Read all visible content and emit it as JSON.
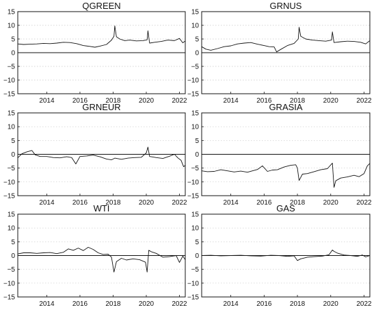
{
  "chart_data": [
    {
      "type": "line",
      "title": "QGREEN",
      "ylim": [
        -15,
        15
      ],
      "xlim": [
        2012.25,
        2022.35
      ],
      "yticks": [
        -15,
        -10,
        -5,
        0,
        5,
        10,
        15
      ],
      "xticks": [
        2014,
        2016,
        2018,
        2020,
        2022
      ],
      "grid": true,
      "series": [
        {
          "x": [
            2012.25,
            2012.6,
            2013.0,
            2013.4,
            2013.8,
            2014.2,
            2014.6,
            2015.0,
            2015.4,
            2015.8,
            2016.2,
            2016.6,
            2016.9,
            2017.2,
            2017.6,
            2017.9,
            2018.05,
            2018.1,
            2018.2,
            2018.4,
            2018.7,
            2019.0,
            2019.4,
            2019.8,
            2020.05,
            2020.1,
            2020.2,
            2020.5,
            2020.9,
            2021.3,
            2021.7,
            2022.0,
            2022.2,
            2022.35
          ],
          "y": [
            3.2,
            3.0,
            3.1,
            3.2,
            3.4,
            3.3,
            3.5,
            3.8,
            3.7,
            3.3,
            2.6,
            2.3,
            2.0,
            2.4,
            3.0,
            4.6,
            6.0,
            9.8,
            5.8,
            5.0,
            4.4,
            4.6,
            4.3,
            4.4,
            4.7,
            8.0,
            3.5,
            3.8,
            4.1,
            4.6,
            4.4,
            5.2,
            3.6,
            4.3
          ]
        }
      ]
    },
    {
      "type": "line",
      "title": "GRNUS",
      "ylim": [
        -15,
        15
      ],
      "xlim": [
        2012.25,
        2022.35
      ],
      "yticks": [
        -15,
        -10,
        -5,
        0,
        5,
        10,
        15
      ],
      "xticks": [
        2014,
        2016,
        2018,
        2020,
        2022
      ],
      "grid": true,
      "series": [
        {
          "x": [
            2012.25,
            2012.5,
            2012.8,
            2013.2,
            2013.6,
            2014.0,
            2014.4,
            2014.8,
            2015.2,
            2015.6,
            2016.0,
            2016.3,
            2016.6,
            2016.75,
            2017.0,
            2017.4,
            2017.8,
            2018.05,
            2018.1,
            2018.2,
            2018.5,
            2018.9,
            2019.3,
            2019.7,
            2020.05,
            2020.1,
            2020.2,
            2020.6,
            2021.0,
            2021.4,
            2021.8,
            2022.1,
            2022.35
          ],
          "y": [
            2.2,
            1.3,
            0.9,
            1.5,
            2.2,
            2.5,
            3.2,
            3.5,
            3.7,
            3.1,
            2.6,
            2.2,
            2.1,
            0.3,
            1.2,
            2.6,
            3.4,
            5.0,
            9.3,
            6.0,
            5.0,
            4.6,
            4.4,
            4.2,
            4.6,
            7.6,
            3.7,
            4.0,
            4.2,
            4.1,
            3.8,
            3.2,
            4.4
          ]
        }
      ]
    },
    {
      "type": "line",
      "title": "GRNEUR",
      "ylim": [
        -15,
        15
      ],
      "xlim": [
        2012.25,
        2022.35
      ],
      "yticks": [
        -15,
        -10,
        -5,
        0,
        5,
        10,
        15
      ],
      "xticks": [
        2014,
        2016,
        2018,
        2020,
        2022
      ],
      "grid": true,
      "series": [
        {
          "x": [
            2012.25,
            2012.5,
            2012.8,
            2013.1,
            2013.3,
            2013.6,
            2014.0,
            2014.4,
            2014.8,
            2015.2,
            2015.5,
            2015.75,
            2016.0,
            2016.4,
            2016.8,
            2017.2,
            2017.6,
            2017.9,
            2018.1,
            2018.5,
            2018.9,
            2019.3,
            2019.7,
            2020.0,
            2020.1,
            2020.2,
            2020.3,
            2020.6,
            2021.0,
            2021.4,
            2021.7,
            2021.9,
            2022.1,
            2022.25,
            2022.35
          ],
          "y": [
            -1.3,
            0.2,
            0.9,
            1.4,
            -0.2,
            -0.8,
            -0.8,
            -1.2,
            -1.3,
            -0.9,
            -1.2,
            -3.5,
            -0.8,
            -0.6,
            -0.3,
            -0.9,
            -1.7,
            -2.0,
            -1.4,
            -1.8,
            -1.4,
            -1.2,
            -1.1,
            0.5,
            2.6,
            -0.8,
            -0.9,
            -1.2,
            -1.5,
            -0.7,
            0.0,
            -1.3,
            -2.2,
            -4.5,
            -4.0
          ]
        }
      ]
    },
    {
      "type": "line",
      "title": "GRASIA",
      "ylim": [
        -15,
        15
      ],
      "xlim": [
        2012.25,
        2022.35
      ],
      "yticks": [
        -15,
        -10,
        -5,
        0,
        5,
        10,
        15
      ],
      "xticks": [
        2014,
        2016,
        2018,
        2020,
        2022
      ],
      "grid": true,
      "series": [
        {
          "x": [
            2012.25,
            2012.6,
            2013.0,
            2013.4,
            2013.8,
            2014.2,
            2014.6,
            2015.0,
            2015.3,
            2015.6,
            2015.9,
            2016.2,
            2016.5,
            2016.8,
            2017.2,
            2017.6,
            2017.9,
            2018.0,
            2018.1,
            2018.3,
            2018.6,
            2019.0,
            2019.4,
            2019.8,
            2020.1,
            2020.2,
            2020.3,
            2020.6,
            2021.0,
            2021.4,
            2021.7,
            2022.0,
            2022.2,
            2022.35
          ],
          "y": [
            -6.0,
            -6.3,
            -6.2,
            -5.6,
            -6.0,
            -6.4,
            -6.1,
            -6.5,
            -6.0,
            -5.5,
            -4.2,
            -6.2,
            -5.7,
            -5.6,
            -4.6,
            -4.0,
            -3.8,
            -5.0,
            -9.5,
            -7.2,
            -7.0,
            -6.3,
            -5.6,
            -5.2,
            -3.2,
            -12.0,
            -9.6,
            -8.6,
            -8.2,
            -7.6,
            -8.1,
            -7.0,
            -4.2,
            -3.3
          ]
        }
      ]
    },
    {
      "type": "line",
      "title": "WTI",
      "ylim": [
        -15,
        15
      ],
      "xlim": [
        2012.25,
        2022.35
      ],
      "yticks": [
        -15,
        -10,
        -5,
        0,
        5,
        10,
        15
      ],
      "xticks": [
        2014,
        2016,
        2018,
        2020,
        2022
      ],
      "grid": true,
      "series": [
        {
          "x": [
            2012.25,
            2012.6,
            2013.0,
            2013.4,
            2013.8,
            2014.2,
            2014.6,
            2015.0,
            2015.3,
            2015.6,
            2015.9,
            2016.2,
            2016.5,
            2016.8,
            2017.1,
            2017.4,
            2017.7,
            2017.9,
            2018.05,
            2018.2,
            2018.5,
            2018.8,
            2019.2,
            2019.6,
            2019.95,
            2020.05,
            2020.15,
            2020.3,
            2020.6,
            2021.0,
            2021.4,
            2021.8,
            2022.0,
            2022.2,
            2022.35
          ],
          "y": [
            0.6,
            1.0,
            1.0,
            0.8,
            1.0,
            1.1,
            0.7,
            1.2,
            2.4,
            1.9,
            2.7,
            1.8,
            3.0,
            2.2,
            1.0,
            0.4,
            0.5,
            -0.6,
            -6.0,
            -2.2,
            -1.0,
            -1.6,
            -1.2,
            -1.5,
            -2.4,
            -6.0,
            1.9,
            1.4,
            0.8,
            -0.6,
            -0.4,
            0.0,
            -2.5,
            -0.2,
            -1.5
          ]
        }
      ]
    },
    {
      "type": "line",
      "title": "GAS",
      "ylim": [
        -15,
        15
      ],
      "xlim": [
        2012.25,
        2022.35
      ],
      "yticks": [
        -15,
        -10,
        -5,
        0,
        5,
        10,
        15
      ],
      "xticks": [
        2014,
        2016,
        2018,
        2020,
        2022
      ],
      "grid": true,
      "series": [
        {
          "x": [
            2012.25,
            2012.8,
            2013.4,
            2014.0,
            2014.6,
            2015.2,
            2015.8,
            2016.4,
            2016.9,
            2017.4,
            2017.8,
            2018.0,
            2018.2,
            2018.6,
            2019.0,
            2019.5,
            2019.9,
            2020.1,
            2020.2,
            2020.4,
            2020.8,
            2021.2,
            2021.6,
            2021.9,
            2022.1,
            2022.35
          ],
          "y": [
            0.0,
            0.1,
            -0.1,
            0.0,
            0.1,
            -0.1,
            -0.2,
            0.1,
            0.0,
            -0.3,
            -0.1,
            -1.8,
            -1.2,
            -0.6,
            -0.4,
            -0.2,
            0.3,
            2.0,
            1.5,
            0.9,
            0.2,
            0.0,
            -0.3,
            0.2,
            -0.5,
            0.0
          ]
        }
      ]
    }
  ]
}
